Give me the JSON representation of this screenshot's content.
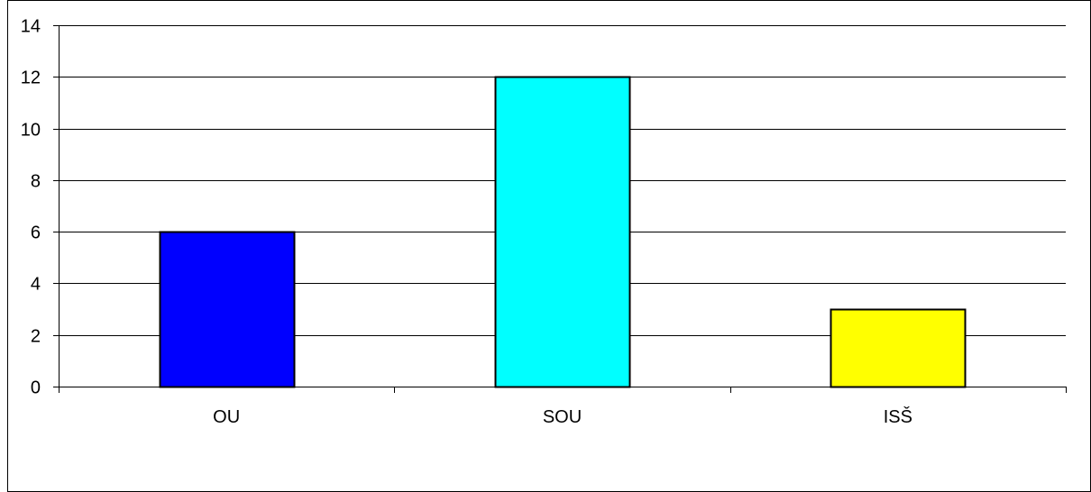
{
  "chart_data": {
    "type": "bar",
    "categories": [
      "OU",
      "SOU",
      "ISŠ"
    ],
    "values": [
      6,
      12,
      3
    ],
    "colors": [
      "#0000ff",
      "#00ffff",
      "#ffff00"
    ],
    "title": "",
    "xlabel": "",
    "ylabel": "",
    "ylim": [
      0,
      14
    ],
    "yticks": [
      "0",
      "2",
      "4",
      "6",
      "8",
      "10",
      "12",
      "14"
    ],
    "grid": true,
    "legend": "none"
  }
}
